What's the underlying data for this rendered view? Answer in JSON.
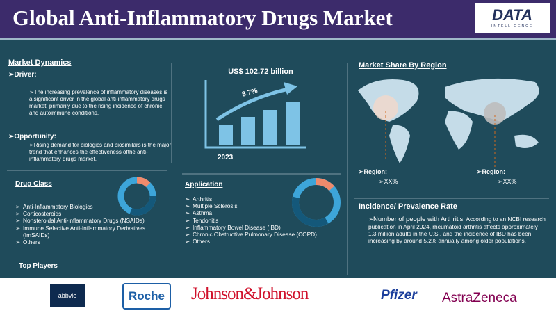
{
  "header": {
    "title": "Global Anti-Inflammatory Drugs Market",
    "logo": "DATA",
    "logo_sub": "INTELLIGENCE"
  },
  "market_dynamics": {
    "title": "Market Dynamics",
    "driver": {
      "label": "Driver:",
      "text": "The increasing prevalence of inflammatory diseases is a significant driver in the global anti-inflammatory drugs market, primarily due to the rising incidence of chronic and autoimmune conditions."
    },
    "opportunity": {
      "label": "Opportunity:",
      "text": "Rising demand for biologics and biosimilars is the major trend that enhances the effectiveness ofthe anti-inflammatory drugs market."
    }
  },
  "market_size": {
    "value": "US$ 102.72 billion",
    "growth": "8.7%",
    "year": "2023"
  },
  "region": {
    "title": "Market Share By Region",
    "items": [
      {
        "label": "Region:",
        "value": "XX%"
      },
      {
        "label": "Region:",
        "value": "XX%"
      }
    ]
  },
  "drug_class": {
    "title": "Drug Class",
    "items": [
      "Anti-Inflammatory Biologics",
      "Corticosteroids",
      "Nonsteroidal Anti-inflammatory Drugs (NSAIDs)",
      "Immune Selective Anti-Inflammatory Derivatives (ImSAIDs)",
      "Others"
    ]
  },
  "application": {
    "title": "Application",
    "items": [
      "Arthritis",
      "Multiple Sclerosis",
      "Asthma",
      "Tendonitis",
      "Inflammatory Bowel Disease (IBD)",
      "Chronic Obstructive Pulmonary Disease (COPD)",
      "Others"
    ]
  },
  "incidence": {
    "title": "Incidence/ Prevalence Rate",
    "label": "Number of people with Arthritis",
    "text": ": According to an NCBI research publication in April 2024, rheumatoid arthritis affects approximately 1.3 million adults in the U.S., and the incidence of IBD has been increasing by around 5.2% annually among older populations."
  },
  "top_players": {
    "title": "Top Players",
    "logos": [
      "abbvie",
      "Roche",
      "Johnson&Johnson",
      "Pfizer",
      "AstraZeneca"
    ]
  }
}
